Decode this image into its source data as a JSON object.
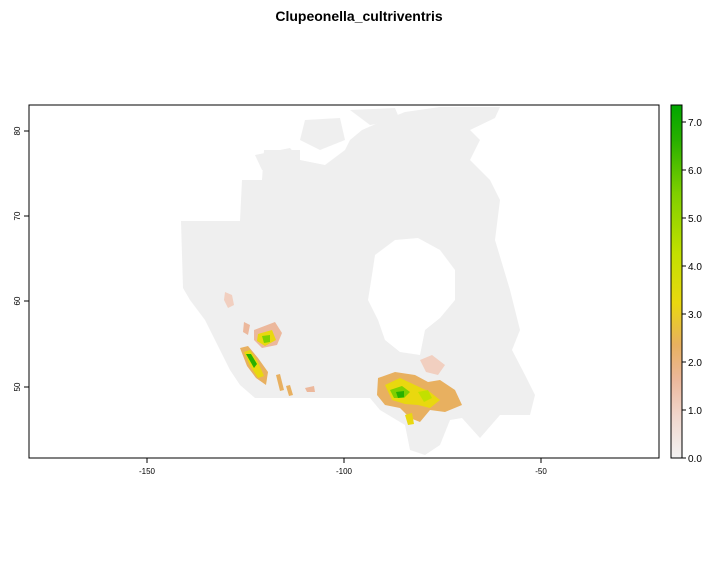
{
  "title": "Clupeonella_cultriventris",
  "map": {
    "x_axis": {
      "ticks": [
        "-150",
        "-100",
        "-50"
      ],
      "values": [
        -150,
        -100,
        -50
      ]
    },
    "y_axis": {
      "ticks": [
        "50",
        "60",
        "70",
        "80"
      ],
      "values": [
        50,
        60,
        70,
        80
      ]
    },
    "background_color": "#efefef"
  },
  "legend": {
    "ticks": [
      "0.0",
      "1.0",
      "2.0",
      "3.0",
      "4.0",
      "5.0",
      "6.0",
      "7.0"
    ],
    "values": [
      0,
      1,
      2,
      3,
      4,
      5,
      6,
      7
    ],
    "range": [
      0,
      7.35
    ],
    "gradient_colors": [
      "#f2f2f2",
      "#f1cfc0",
      "#e8b060",
      "#e9d80f",
      "#c2e000",
      "#7fd000",
      "#28b000",
      "#00a600"
    ]
  }
}
